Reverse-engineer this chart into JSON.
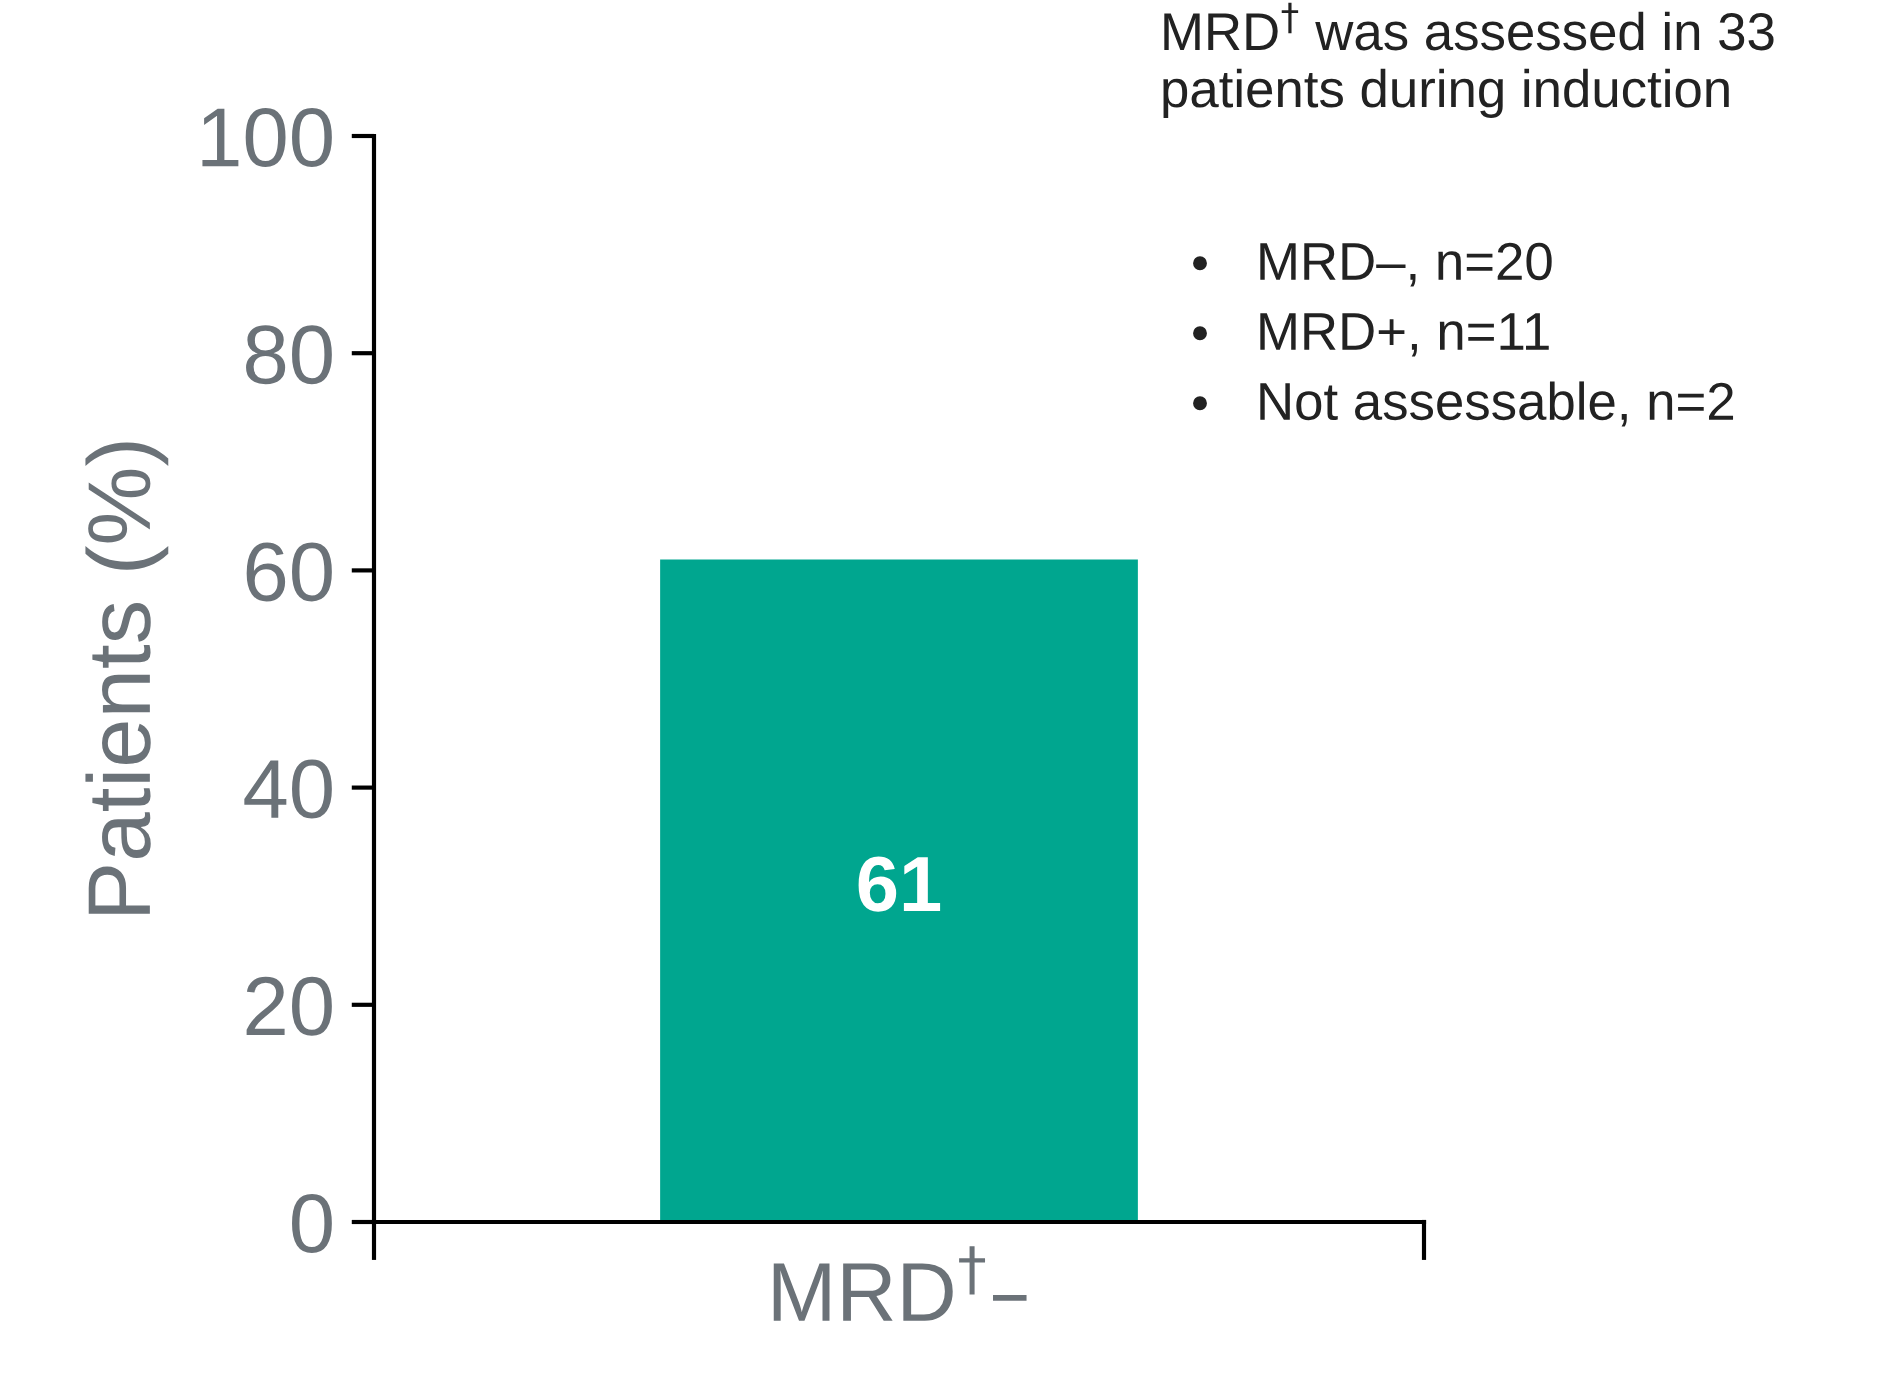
{
  "chart_data": {
    "type": "bar",
    "ylabel": "Patients (%)",
    "categories": [
      "MRD$^{†}$–"
    ],
    "values": [
      61
    ],
    "color": "#00a68f",
    "ylim": [
      0,
      100
    ],
    "yticks": [
      0,
      20,
      40,
      60,
      80,
      100
    ],
    "grid": false,
    "data_labels": true,
    "annotations": [
      "MRD$^{†}$ was assessed in 33 patients during induction",
      "MRD–, n=20",
      "MRD+, n=11",
      "Not assessable, n=2"
    ]
  }
}
